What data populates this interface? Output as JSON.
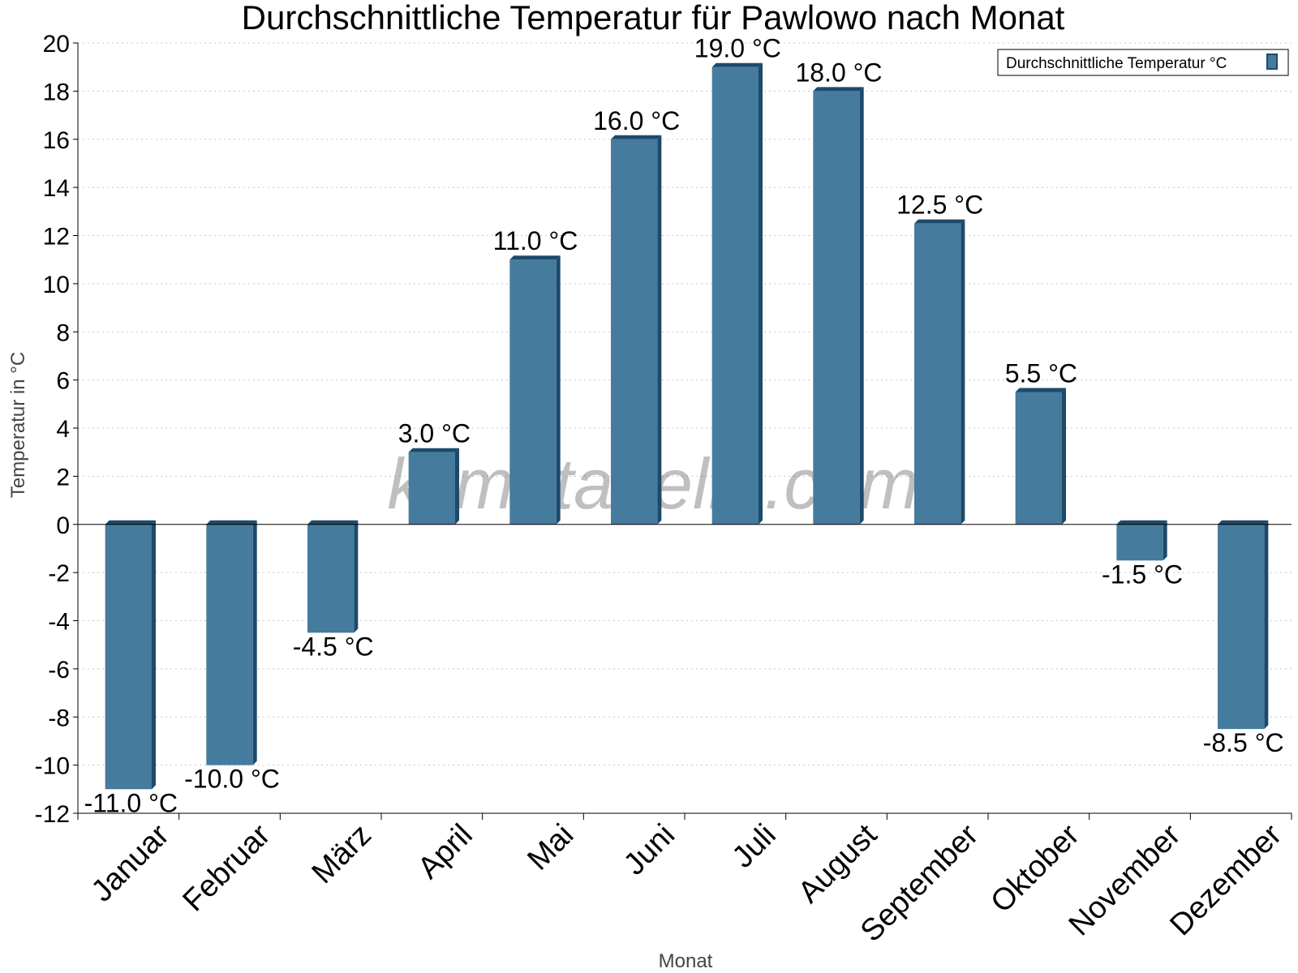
{
  "chart_data": {
    "type": "bar",
    "title": "Durchschnittliche Temperatur für Pawlowo nach Monat",
    "xlabel": "Monat",
    "ylabel": "Temperatur in °C",
    "categories": [
      "Januar",
      "Februar",
      "März",
      "April",
      "Mai",
      "Juni",
      "Juli",
      "August",
      "September",
      "Oktober",
      "November",
      "Dezember"
    ],
    "series": [
      {
        "name": "Durchschnittliche Temperatur °C",
        "values": [
          -11.0,
          -10.0,
          -4.5,
          3.0,
          11.0,
          16.0,
          19.0,
          18.0,
          12.5,
          5.5,
          -1.5,
          -8.5
        ],
        "data_labels": [
          "-11.0 °C",
          "-10.0 °C",
          "-4.5 °C",
          "3.0 °C",
          "11.0 °C",
          "16.0 °C",
          "19.0 °C",
          "18.0 °C",
          "12.5 °C",
          "5.5 °C",
          "-1.5 °C",
          "-8.5 °C"
        ],
        "color": "#457b9d",
        "edge_color": "#1d4a6b"
      }
    ],
    "ylim": [
      -12,
      20
    ],
    "yticks": [
      -12,
      -10,
      -8,
      -6,
      -4,
      -2,
      0,
      2,
      4,
      6,
      8,
      10,
      12,
      14,
      16,
      18,
      20
    ],
    "grid": true,
    "legend_position": "top-right",
    "watermark": "klimatabelle.com"
  }
}
